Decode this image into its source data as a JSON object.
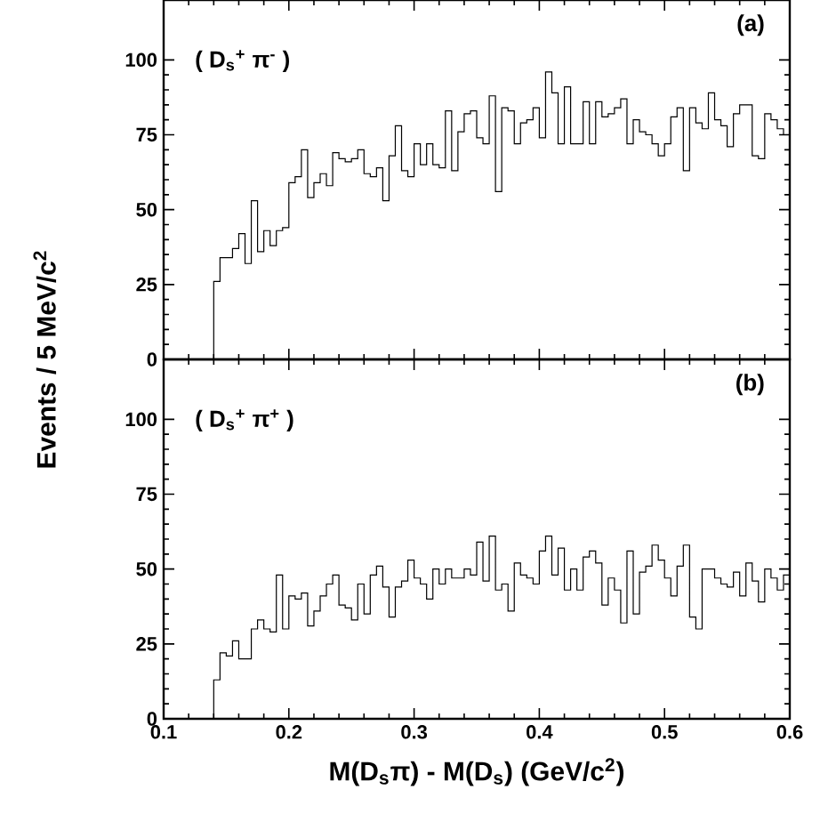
{
  "chart_data": [
    {
      "type": "histogram",
      "ylabel": "Events / 5 MeV/c$^{2}$",
      "annotations": [
        "( D$_{s}$$^{+}$ π$^{-}$ )",
        "(a)"
      ],
      "xlim": [
        0.1,
        0.6
      ],
      "ylim": [
        0,
        120
      ],
      "xticks": [
        0.1,
        0.2,
        0.3,
        0.4,
        0.5,
        0.6
      ],
      "yticks": [
        0,
        25,
        50,
        75,
        100
      ],
      "tick_labels": "y",
      "bins": [
        0.14,
        0.145,
        0.15,
        0.155,
        0.16,
        0.165,
        0.17,
        0.175,
        0.18,
        0.185,
        0.19,
        0.195,
        0.2,
        0.205,
        0.21,
        0.215,
        0.22,
        0.225,
        0.23,
        0.235,
        0.24,
        0.245,
        0.25,
        0.255,
        0.26,
        0.265,
        0.27,
        0.275,
        0.28,
        0.285,
        0.29,
        0.295,
        0.3,
        0.305,
        0.31,
        0.315,
        0.32,
        0.325,
        0.33,
        0.335,
        0.34,
        0.345,
        0.35,
        0.355,
        0.36,
        0.365,
        0.37,
        0.375,
        0.38,
        0.385,
        0.39,
        0.395,
        0.4,
        0.405,
        0.41,
        0.415,
        0.42,
        0.425,
        0.43,
        0.435,
        0.44,
        0.445,
        0.45,
        0.455,
        0.46,
        0.465,
        0.47,
        0.475,
        0.48,
        0.485,
        0.49,
        0.495,
        0.5,
        0.505,
        0.51,
        0.515,
        0.52,
        0.525,
        0.53,
        0.535,
        0.54,
        0.545,
        0.55,
        0.555,
        0.56,
        0.565,
        0.57,
        0.575,
        0.58,
        0.585,
        0.59,
        0.595,
        0.6
      ],
      "values": [
        26,
        34,
        34,
        37,
        42,
        32,
        53,
        36,
        43,
        38,
        43,
        44,
        59,
        61,
        70,
        54,
        59,
        62,
        58,
        69,
        67,
        66,
        67,
        70,
        62,
        61,
        64,
        53,
        68,
        78,
        63,
        61,
        72,
        65,
        72,
        65,
        64,
        83,
        63,
        76,
        82,
        83,
        74,
        72,
        88,
        56,
        84,
        83,
        72,
        79,
        80,
        84,
        74,
        96,
        89,
        72,
        91,
        72,
        72,
        86,
        72,
        86,
        81,
        82,
        84,
        87,
        72,
        80,
        76,
        75,
        72,
        68,
        72,
        81,
        84,
        63,
        84,
        79,
        77,
        89,
        80,
        78,
        71,
        82,
        85,
        85,
        68,
        67,
        82,
        80,
        77,
        75
      ]
    },
    {
      "type": "histogram",
      "xlabel": "M(D$_{s}$π) - M(D$_{s}$) (GeV/c$^{2}$)",
      "annotations": [
        "( D$_{s}$$^{+}$ π$^{+}$ )",
        "(b)"
      ],
      "xlim": [
        0.1,
        0.6
      ],
      "ylim": [
        0,
        120
      ],
      "xticks": [
        0.1,
        0.2,
        0.3,
        0.4,
        0.5,
        0.6
      ],
      "yticks": [
        0,
        25,
        50,
        75,
        100
      ],
      "bins": [
        0.14,
        0.145,
        0.15,
        0.155,
        0.16,
        0.165,
        0.17,
        0.175,
        0.18,
        0.185,
        0.19,
        0.195,
        0.2,
        0.205,
        0.21,
        0.215,
        0.22,
        0.225,
        0.23,
        0.235,
        0.24,
        0.245,
        0.25,
        0.255,
        0.26,
        0.265,
        0.27,
        0.275,
        0.28,
        0.285,
        0.29,
        0.295,
        0.3,
        0.305,
        0.31,
        0.315,
        0.32,
        0.325,
        0.33,
        0.335,
        0.34,
        0.345,
        0.35,
        0.355,
        0.36,
        0.365,
        0.37,
        0.375,
        0.38,
        0.385,
        0.39,
        0.395,
        0.4,
        0.405,
        0.41,
        0.415,
        0.42,
        0.425,
        0.43,
        0.435,
        0.44,
        0.445,
        0.45,
        0.455,
        0.46,
        0.465,
        0.47,
        0.475,
        0.48,
        0.485,
        0.49,
        0.495,
        0.5,
        0.505,
        0.51,
        0.515,
        0.52,
        0.525,
        0.53,
        0.535,
        0.54,
        0.545,
        0.55,
        0.555,
        0.56,
        0.565,
        0.57,
        0.575,
        0.58,
        0.585,
        0.59,
        0.595,
        0.6
      ],
      "values": [
        13,
        22,
        21,
        26,
        20,
        20,
        30,
        33,
        30,
        29,
        48,
        30,
        41,
        40,
        42,
        31,
        36,
        41,
        45,
        48,
        38,
        37,
        33,
        45,
        35,
        48,
        51,
        44,
        34,
        44,
        46,
        53,
        47,
        45,
        40,
        50,
        45,
        50,
        47,
        47,
        50,
        48,
        59,
        46,
        61,
        43,
        45,
        36,
        52,
        48,
        47,
        45,
        56,
        61,
        48,
        57,
        43,
        50,
        43,
        54,
        56,
        52,
        38,
        47,
        43,
        32,
        56,
        35,
        49,
        51,
        58,
        53,
        47,
        41,
        51,
        58,
        34,
        30,
        50,
        50,
        47,
        45,
        44,
        49,
        41,
        52,
        46,
        39,
        50,
        47,
        43,
        48
      ]
    }
  ]
}
